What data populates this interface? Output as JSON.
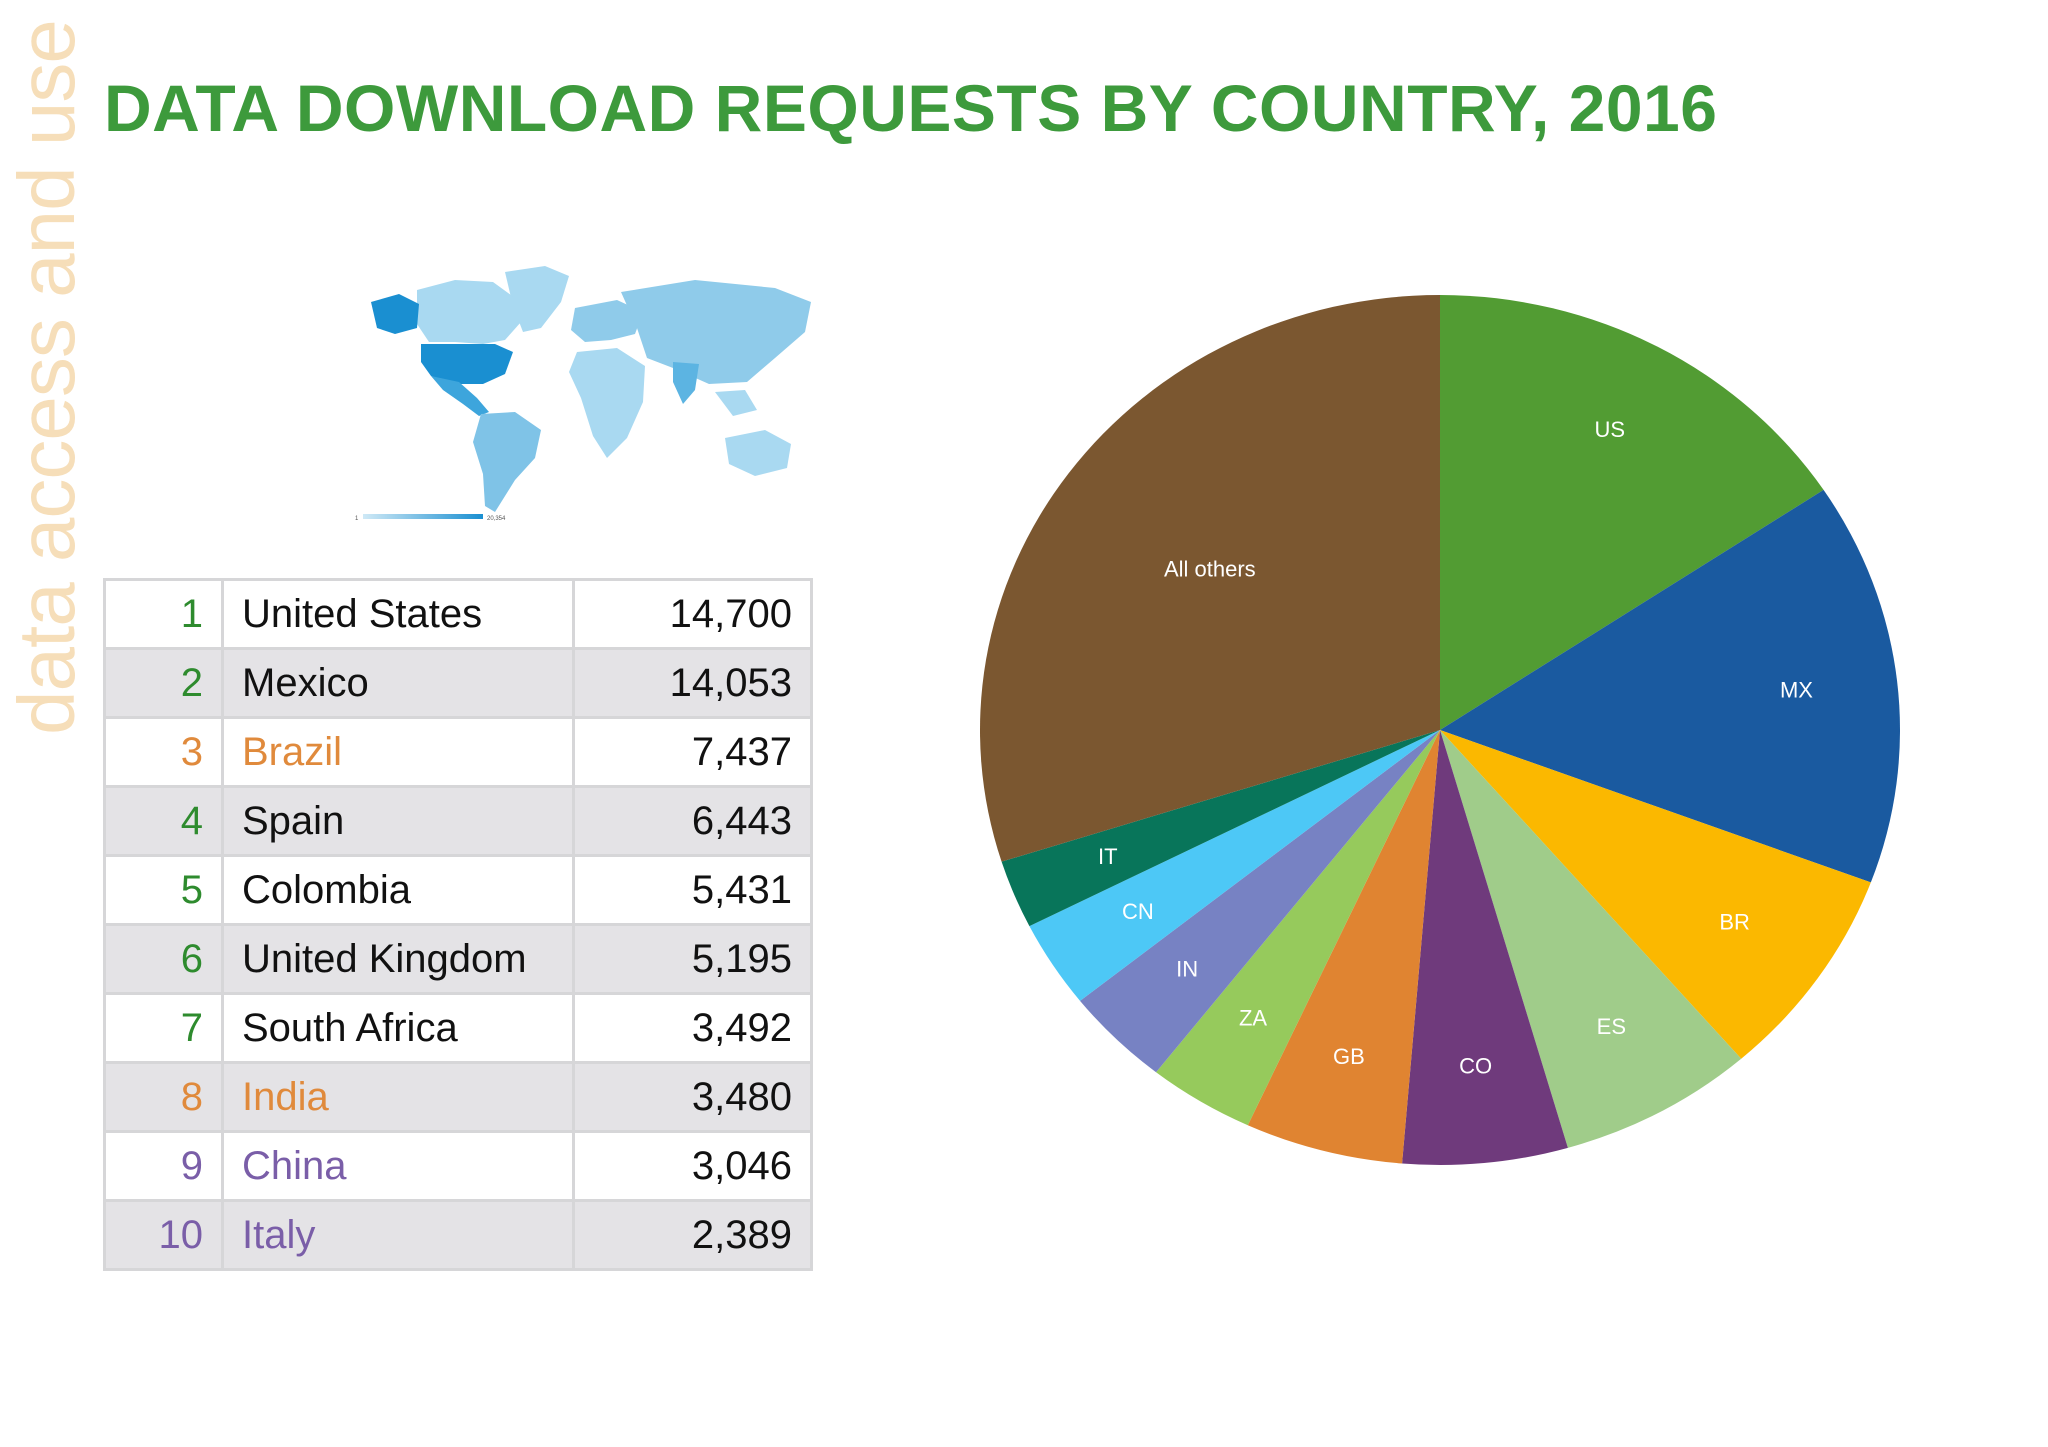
{
  "side_label": "data access and use",
  "title": "DATA DOWNLOAD REQUESTS BY COUNTRY, 2016",
  "map": {
    "legend_min": "1",
    "legend_max": "20,354",
    "colors": {
      "ocean": "#ffffff",
      "low": "#cfe9f6",
      "mid": "#8fcbea",
      "high": "#1a8fd1"
    }
  },
  "ranking": {
    "rows": [
      {
        "rank": "1",
        "country": "United States",
        "value": "14,700",
        "rank_color": "#2e8b2e",
        "name_color": "#111111"
      },
      {
        "rank": "2",
        "country": "Mexico",
        "value": "14,053",
        "rank_color": "#2e8b2e",
        "name_color": "#111111"
      },
      {
        "rank": "3",
        "country": "Brazil",
        "value": "7,437",
        "rank_color": "#e08a3c",
        "name_color": "#e08a3c"
      },
      {
        "rank": "4",
        "country": "Spain",
        "value": "6,443",
        "rank_color": "#2e8b2e",
        "name_color": "#111111"
      },
      {
        "rank": "5",
        "country": "Colombia",
        "value": "5,431",
        "rank_color": "#2e8b2e",
        "name_color": "#111111"
      },
      {
        "rank": "6",
        "country": "United Kingdom",
        "value": "5,195",
        "rank_color": "#2e8b2e",
        "name_color": "#111111"
      },
      {
        "rank": "7",
        "country": "South Africa",
        "value": "3,492",
        "rank_color": "#2e8b2e",
        "name_color": "#111111"
      },
      {
        "rank": "8",
        "country": "India",
        "value": "3,480",
        "rank_color": "#e08a3c",
        "name_color": "#e08a3c"
      },
      {
        "rank": "9",
        "country": "China",
        "value": "3,046",
        "rank_color": "#7a5ea8",
        "name_color": "#7a5ea8"
      },
      {
        "rank": "10",
        "country": "Italy",
        "value": "2,389",
        "rank_color": "#7a5ea8",
        "name_color": "#7a5ea8"
      }
    ]
  },
  "chart_data": {
    "type": "pie",
    "title": "",
    "start_angle_deg": 0,
    "direction": "clockwise",
    "legend": "none",
    "slices": [
      {
        "label": "US",
        "value": 14700,
        "color": "#529c33"
      },
      {
        "label": "MX",
        "value": 14053,
        "color": "#1a5aa0"
      },
      {
        "label": "BR",
        "value": 7437,
        "color": "#fbb800"
      },
      {
        "label": "ES",
        "value": 6443,
        "color": "#a0cc8a"
      },
      {
        "label": "CO",
        "value": 5431,
        "color": "#6f3a7c"
      },
      {
        "label": "GB",
        "value": 5195,
        "color": "#e08431"
      },
      {
        "label": "ZA",
        "value": 3492,
        "color": "#96ca5c"
      },
      {
        "label": "IN",
        "value": 3480,
        "color": "#7782c3"
      },
      {
        "label": "CN",
        "value": 3046,
        "color": "#4dc8f6"
      },
      {
        "label": "IT",
        "value": 2389,
        "color": "#08755a"
      },
      {
        "label": "All others",
        "value": 28000,
        "color": "#7b5730"
      }
    ]
  }
}
